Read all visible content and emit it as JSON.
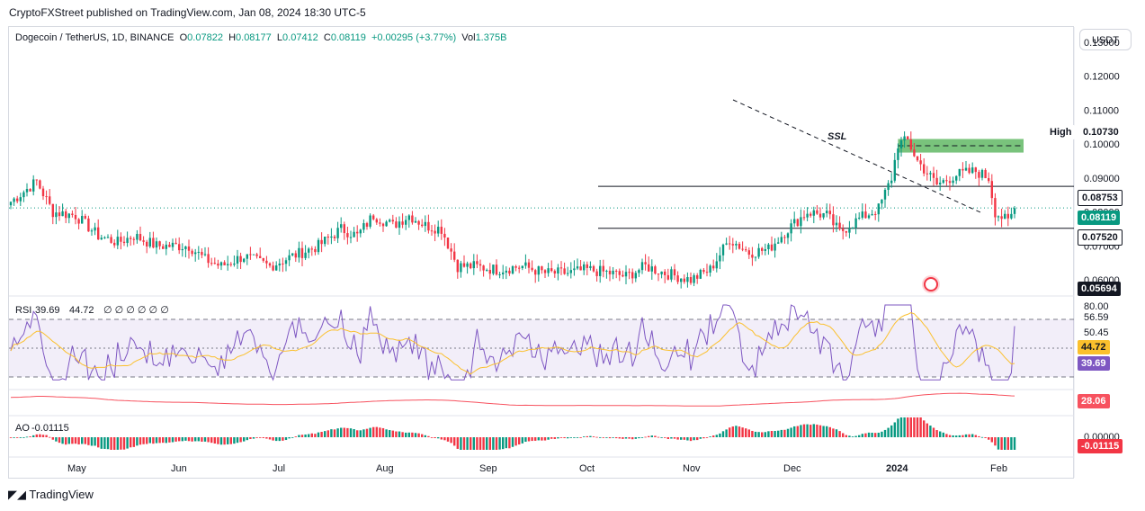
{
  "publisher": "CryptoFXStreet published on TradingView.com, Jan 08, 2024 18:30 UTC-5",
  "legend": {
    "symbol": "Dogecoin / TetherUS, 1D, BINANCE",
    "open_label": "O",
    "open": "0.07822",
    "high_label": "H",
    "high": "0.08177",
    "low_label": "L",
    "low": "0.07412",
    "close_label": "C",
    "close": "0.08119",
    "change": "+0.00295 (+3.77%)",
    "vol_label": "Vol",
    "vol": "1.375B"
  },
  "currency_button": "USDT",
  "footer_brand": "TradingView",
  "colors": {
    "up": "#089981",
    "down": "#f23645",
    "rsi": "#7e57c2",
    "rsi_ma": "#fbc02d",
    "osc": "#f7525f",
    "zone": "#4caf50"
  },
  "chart_data": {
    "type": "candlestick",
    "title": "Dogecoin / TetherUS, 1D, BINANCE",
    "ylim": [
      0.0555,
      0.1345
    ],
    "y_ticks": [
      "0.13000",
      "0.12000",
      "0.11000",
      "0.10000",
      "0.09000",
      "0.08000",
      "0.07000",
      "0.06000"
    ],
    "x_labels": [
      "May",
      "Jun",
      "Jul",
      "Aug",
      "Sep",
      "Oct",
      "Nov",
      "Dec",
      "2024",
      "Feb"
    ],
    "key_points": [
      [
        0,
        0.083
      ],
      [
        8,
        0.089
      ],
      [
        13,
        0.08
      ],
      [
        20,
        0.079
      ],
      [
        27,
        0.073
      ],
      [
        33,
        0.071
      ],
      [
        38,
        0.073
      ],
      [
        45,
        0.07
      ],
      [
        55,
        0.07
      ],
      [
        60,
        0.066
      ],
      [
        65,
        0.064
      ],
      [
        72,
        0.067
      ],
      [
        80,
        0.064
      ],
      [
        87,
        0.067
      ],
      [
        95,
        0.07
      ],
      [
        102,
        0.075
      ],
      [
        107,
        0.073
      ],
      [
        112,
        0.079
      ],
      [
        118,
        0.076
      ],
      [
        123,
        0.079
      ],
      [
        128,
        0.076
      ],
      [
        133,
        0.075
      ],
      [
        138,
        0.064
      ],
      [
        143,
        0.064
      ],
      [
        150,
        0.063
      ],
      [
        158,
        0.064
      ],
      [
        165,
        0.062
      ],
      [
        172,
        0.062
      ],
      [
        178,
        0.063
      ],
      [
        185,
        0.062
      ],
      [
        190,
        0.061
      ],
      [
        196,
        0.064
      ],
      [
        202,
        0.062
      ],
      [
        210,
        0.06
      ],
      [
        216,
        0.063
      ],
      [
        222,
        0.072
      ],
      [
        228,
        0.068
      ],
      [
        234,
        0.069
      ],
      [
        240,
        0.075
      ],
      [
        246,
        0.08
      ],
      [
        252,
        0.079
      ],
      [
        256,
        0.074
      ],
      [
        262,
        0.078
      ],
      [
        268,
        0.081
      ],
      [
        272,
        0.09
      ],
      [
        274,
        0.1
      ],
      [
        277,
        0.101
      ],
      [
        280,
        0.095
      ],
      [
        286,
        0.088
      ],
      [
        292,
        0.091
      ],
      [
        298,
        0.092
      ],
      [
        302,
        0.09
      ],
      [
        304,
        0.08
      ],
      [
        308,
        0.077
      ],
      [
        310,
        0.081
      ]
    ],
    "annotations": {
      "ssl_label": "SSL",
      "high_label": "High",
      "high_value": "0.10730",
      "resistance": "0.08753",
      "current_price": "0.08119",
      "support": "0.07520",
      "low_value": "0.05694",
      "fvg_zone": [
        0.0975,
        0.1015
      ]
    },
    "rsi": {
      "label": "RSI",
      "value": "39.69",
      "ma_value": "44.72",
      "params": "∅ ∅ ∅ ∅ ∅ ∅",
      "levels": [
        "80.00",
        "56.59",
        "50.45"
      ],
      "indicator_value": "28.06"
    },
    "ao": {
      "label": "AO",
      "value": "-0.01115",
      "zero": "0.00000"
    }
  }
}
